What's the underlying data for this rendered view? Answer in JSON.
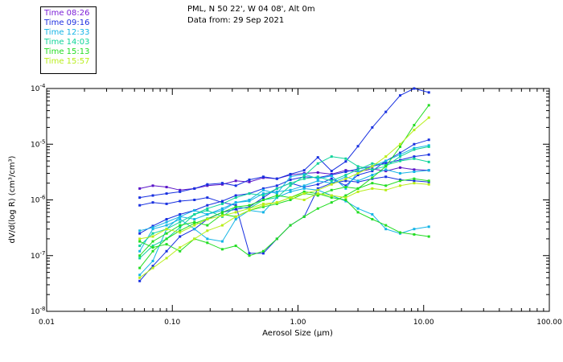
{
  "header": {
    "line1": "PML, N 50 22', W 04 08', Alt 0m",
    "line2": "Data from: 29 Sep 2021"
  },
  "legend": [
    {
      "label": "Time 08:26",
      "color": "#7b1fd6"
    },
    {
      "label": "Time 09:16",
      "color": "#1f2fe0"
    },
    {
      "label": "Time 12:33",
      "color": "#14b4e6"
    },
    {
      "label": "Time 14:03",
      "color": "#10d49a"
    },
    {
      "label": "Time 15:13",
      "color": "#22dd22"
    },
    {
      "label": "Time 15:57",
      "color": "#b8ee18"
    }
  ],
  "chart_data": {
    "type": "line",
    "x_scale": "log",
    "y_scale": "log",
    "xlim": [
      0.01,
      100
    ],
    "ylim": [
      1e-08,
      0.0001
    ],
    "xlabel": "Aerosol Size (μm)",
    "ylabel": "dV/d(log R) (cm³/cm³)",
    "x_tick_labels": [
      {
        "value": 0.01,
        "label": "0.01"
      },
      {
        "value": 0.1,
        "label": "0.10"
      },
      {
        "value": 1,
        "label": "1.00"
      },
      {
        "value": 10,
        "label": "10.00"
      },
      {
        "value": 100,
        "label": "100.00"
      }
    ],
    "y_tick_labels": [
      {
        "value": 0.0001,
        "base": "10",
        "exp": "-4"
      },
      {
        "value": 1e-05,
        "base": "10",
        "exp": "-5"
      },
      {
        "value": 1e-06,
        "base": "10",
        "exp": "-6"
      },
      {
        "value": 1e-07,
        "base": "10",
        "exp": "-7"
      },
      {
        "value": 1e-08,
        "base": "10",
        "exp": "-8"
      }
    ],
    "x": [
      0.055,
      0.07,
      0.09,
      0.115,
      0.15,
      0.19,
      0.25,
      0.32,
      0.41,
      0.53,
      0.68,
      0.87,
      1.12,
      1.44,
      1.85,
      2.4,
      3.0,
      3.9,
      5.0,
      6.5,
      8.4,
      11.0
    ],
    "series": [
      {
        "name": "Time 08:26",
        "color": "#5a14c8",
        "values": [
          1.6e-06,
          1.8e-06,
          1.7e-06,
          1.5e-06,
          1.6e-06,
          1.8e-06,
          1.9e-06,
          2.2e-06,
          2.1e-06,
          2.5e-06,
          2.4e-06,
          2.8e-06,
          3e-06,
          3.1e-06,
          2.9e-06,
          3.4e-06,
          3.2e-06,
          3.6e-06,
          3.3e-06,
          3.8e-06,
          3.5e-06,
          3.4e-06
        ]
      },
      {
        "name": "Time 09:16",
        "color": "#1830e0",
        "values": [
          1.1e-06,
          1.2e-06,
          1.3e-06,
          1.4e-06,
          1.6e-06,
          1.9e-06,
          2e-06,
          1.8e-06,
          2.3e-06,
          2.6e-06,
          2.4e-06,
          2.9e-06,
          3.4e-06,
          5.8e-06,
          3.3e-06,
          4.9e-06,
          9.2e-06,
          2e-05,
          3.8e-05,
          7.5e-05,
          0.0001,
          8.5e-05
        ]
      },
      {
        "name": "Time 09:16",
        "color": "#1830e0",
        "values": [
          3.5e-08,
          6.5e-08,
          1.2e-07,
          2.2e-07,
          3e-07,
          4.5e-07,
          6e-07,
          6.8e-07,
          7.5e-07,
          1.1e-06,
          1.6e-06,
          2e-06,
          1.7e-06,
          1.9e-06,
          2.4e-06,
          1.8e-06,
          2.8e-06,
          3.3e-06,
          5e-06,
          7e-06,
          1e-05,
          1.2e-05
        ]
      },
      {
        "name": "Time 09:16",
        "color": "#1830e0",
        "values": [
          2.5e-07,
          3.4e-07,
          4.5e-07,
          5.5e-07,
          6.5e-07,
          8e-07,
          9.5e-07,
          1.2e-06,
          1.3e-06,
          1.6e-06,
          1.8e-06,
          2.3e-06,
          2.6e-06,
          2.5e-06,
          2.8e-06,
          3.2e-06,
          3.6e-06,
          4e-06,
          4.6e-06,
          5.2e-06,
          6e-06,
          6.5e-06
        ]
      },
      {
        "name": "Time 09:16",
        "color": "#1830e0",
        "values": [
          8e-07,
          9e-07,
          8.5e-07,
          9.5e-07,
          1e-06,
          1.1e-06,
          9e-07,
          8e-07,
          1.1e-07,
          1.1e-07,
          2e-07,
          3.5e-07,
          5e-07,
          1.6e-06,
          2e-06,
          2.2e-06,
          2.1e-06,
          2.4e-06,
          2.6e-06,
          2.3e-06,
          2.2e-06,
          2.1e-06
        ]
      },
      {
        "name": "Time 12:33",
        "color": "#14b4e6",
        "values": [
          2.8e-07,
          3.2e-07,
          4e-07,
          5e-07,
          6.5e-07,
          5.5e-07,
          7e-07,
          9e-07,
          9.5e-07,
          1.3e-06,
          1.4e-06,
          1.5e-06,
          1.8e-06,
          2.2e-06,
          2e-06,
          2.6e-06,
          2.2e-06,
          2.8e-06,
          3.5e-06,
          3e-06,
          3.2e-06,
          3.4e-06
        ]
      },
      {
        "name": "Time 12:33",
        "color": "#14b4e6",
        "values": [
          4.5e-08,
          8e-08,
          3e-07,
          5e-07,
          4.5e-07,
          5.5e-07,
          6.5e-07,
          9e-07,
          1e-06,
          1.5e-06,
          1.3e-06,
          2.6e-06,
          2.9e-06,
          2.4e-06,
          2.7e-06,
          1.6e-06,
          3.2e-06,
          4e-06,
          5e-06,
          6.5e-06,
          8.5e-06,
          9.5e-06
        ]
      },
      {
        "name": "Time 12:33",
        "color": "#14b4e6",
        "values": [
          1.2e-07,
          3e-07,
          3.5e-07,
          4.5e-07,
          3e-07,
          2e-07,
          1.8e-07,
          4.5e-07,
          6.5e-07,
          6e-07,
          1.1e-06,
          1.4e-06,
          1.6e-06,
          1.5e-06,
          1.2e-06,
          9.5e-07,
          7e-07,
          5.5e-07,
          3e-07,
          2.5e-07,
          3e-07,
          3.3e-07
        ]
      },
      {
        "name": "Time 14:03",
        "color": "#10d49a",
        "values": [
          1.5e-07,
          2.5e-07,
          3e-07,
          4e-07,
          5.5e-07,
          7e-07,
          8.5e-07,
          1.1e-06,
          1.3e-06,
          1.2e-06,
          1.6e-06,
          2e-06,
          2.4e-06,
          2.6e-06,
          2.2e-06,
          2.8e-06,
          3.5e-06,
          4.5e-06,
          4.2e-06,
          5e-06,
          5.5e-06,
          4.8e-06
        ]
      },
      {
        "name": "Time 14:03",
        "color": "#10d49a",
        "values": [
          9e-08,
          1.5e-07,
          2e-07,
          3.2e-07,
          5.5e-07,
          6.5e-07,
          5e-07,
          7.5e-07,
          7e-07,
          1e-06,
          1.1e-06,
          1.8e-06,
          2.7e-06,
          4.5e-06,
          6e-06,
          5.5e-06,
          4e-06,
          3.5e-06,
          4e-06,
          6e-06,
          8e-06,
          9e-06
        ]
      },
      {
        "name": "Time 15:13",
        "color": "#22dd22",
        "values": [
          1e-07,
          1.8e-07,
          2.5e-07,
          3.5e-07,
          4e-07,
          3.5e-07,
          5.5e-07,
          5e-07,
          6.5e-07,
          7.5e-07,
          8.5e-07,
          1e-06,
          1.3e-06,
          1.2e-06,
          1.5e-06,
          1.7e-06,
          1.6e-06,
          2e-06,
          1.8e-06,
          2.2e-06,
          2.4e-06,
          2.2e-06
        ]
      },
      {
        "name": "Time 15:13",
        "color": "#22dd22",
        "values": [
          6e-08,
          1.2e-07,
          2e-07,
          2.8e-07,
          3.8e-07,
          4.6e-07,
          6e-07,
          7.5e-07,
          8e-07,
          1e-06,
          1.2e-06,
          1.1e-06,
          1.4e-06,
          1.3e-06,
          1.1e-06,
          1e-06,
          6e-07,
          4.5e-07,
          3.5e-07,
          2.6e-07,
          2.4e-07,
          2.2e-07
        ]
      },
      {
        "name": "Time 15:13",
        "color": "#22dd22",
        "values": [
          1.8e-07,
          1.4e-07,
          1.6e-07,
          1.2e-07,
          2e-07,
          1.7e-07,
          1.3e-07,
          1.5e-07,
          1e-07,
          1.2e-07,
          2e-07,
          3.5e-07,
          5e-07,
          7e-07,
          9e-07,
          1.2e-06,
          1.6e-06,
          2.5e-06,
          4e-06,
          9e-06,
          2.2e-05,
          5e-05
        ]
      },
      {
        "name": "Time 15:57",
        "color": "#b8ee18",
        "values": [
          2e-07,
          2.2e-07,
          3e-07,
          2.6e-07,
          3.5e-07,
          4.5e-07,
          5.2e-07,
          6e-07,
          7e-07,
          8.5e-07,
          9e-07,
          1.1e-06,
          1e-06,
          1.3e-06,
          1.2e-06,
          1.1e-06,
          1.4e-06,
          1.6e-06,
          1.5e-06,
          1.8e-06,
          2e-06,
          1.9e-06
        ]
      },
      {
        "name": "Time 15:57",
        "color": "#b8ee18",
        "values": [
          4e-08,
          6e-08,
          9e-08,
          1.4e-07,
          2e-07,
          2.8e-07,
          3.5e-07,
          5e-07,
          6.5e-07,
          8e-07,
          9e-07,
          1.1e-06,
          1.3e-06,
          1.5e-06,
          1.9e-06,
          2.4e-06,
          3e-06,
          4e-06,
          6e-06,
          1e-05,
          1.8e-05,
          3e-05
        ]
      }
    ]
  }
}
